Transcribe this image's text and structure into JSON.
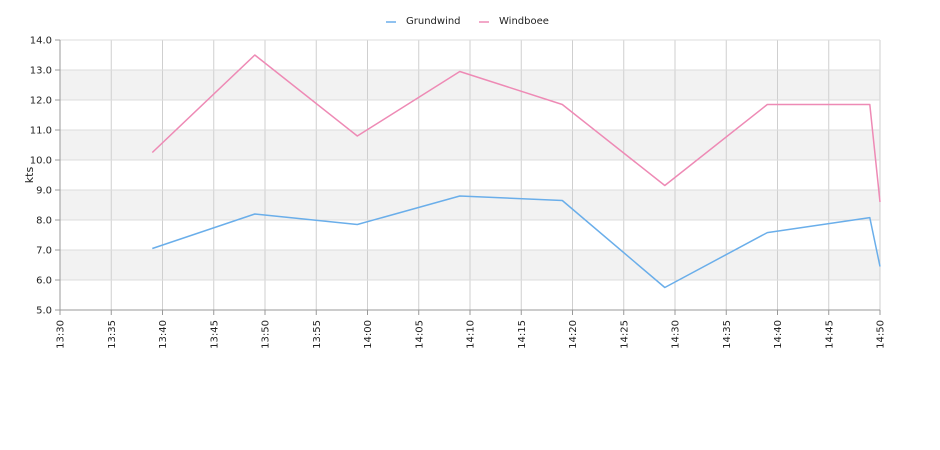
{
  "chart_data": {
    "type": "line",
    "ylabel": "kts",
    "xlabel": "",
    "ylim": [
      5.0,
      14.0
    ],
    "yticks": [
      "5.0",
      "6.0",
      "7.0",
      "8.0",
      "9.0",
      "10.0",
      "11.0",
      "12.0",
      "13.0",
      "14.0"
    ],
    "xlim": [
      "13:30",
      "14:50"
    ],
    "xticks": [
      "13:30",
      "13:35",
      "13:40",
      "13:45",
      "13:50",
      "13:55",
      "14:00",
      "14:05",
      "14:10",
      "14:15",
      "14:20",
      "14:25",
      "14:30",
      "14:35",
      "14:40",
      "14:45",
      "14:50"
    ],
    "grid": true,
    "legend_position": "top-center",
    "series": [
      {
        "name": "Grundwind",
        "color": "#6aaeea",
        "x": [
          "13:39",
          "13:49",
          "13:59",
          "14:09",
          "14:19",
          "14:29",
          "14:39",
          "14:49",
          "14:50"
        ],
        "values": [
          7.05,
          8.2,
          7.85,
          8.8,
          8.65,
          5.75,
          7.58,
          8.08,
          6.45
        ]
      },
      {
        "name": "Windboee",
        "color": "#ee8ab5",
        "x": [
          "13:39",
          "13:49",
          "13:59",
          "14:09",
          "14:19",
          "14:29",
          "14:39",
          "14:49",
          "14:50"
        ],
        "values": [
          10.25,
          13.5,
          10.8,
          12.95,
          11.85,
          9.15,
          11.85,
          11.85,
          8.6
        ]
      }
    ]
  }
}
